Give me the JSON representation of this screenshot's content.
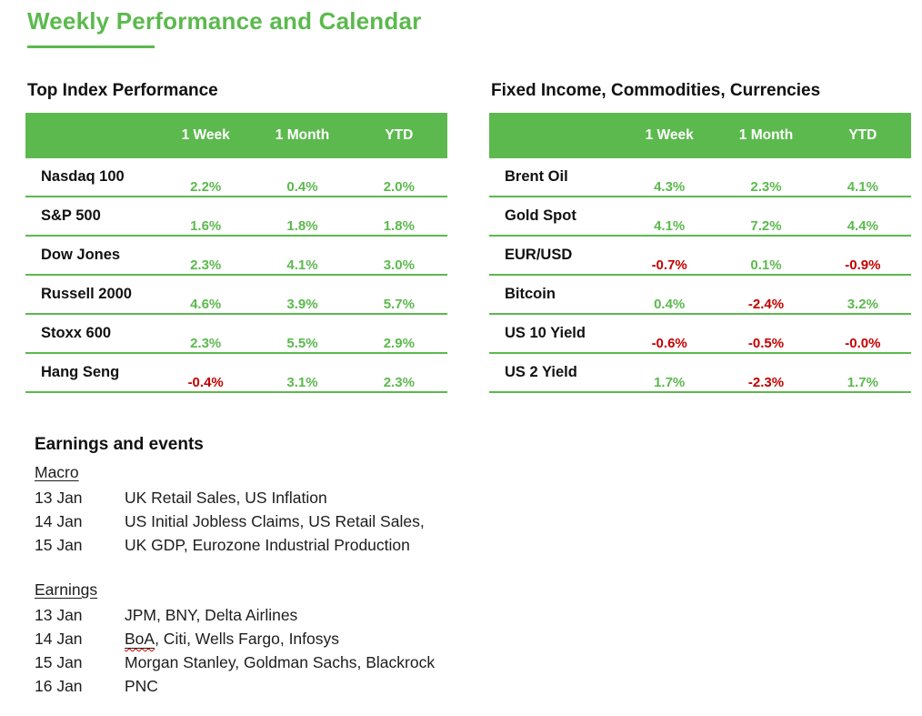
{
  "page": {
    "title": "Weekly Performance and Calendar"
  },
  "colors": {
    "green": "#5CB94E",
    "red": "#C40000"
  },
  "tables": [
    {
      "heading": "Top Index Performance",
      "columns": [
        "1 Week",
        "1 Month",
        "YTD"
      ],
      "rows": [
        {
          "name": "Nasdaq 100",
          "values": [
            {
              "text": "2.2%",
              "tone": "pos"
            },
            {
              "text": "0.4%",
              "tone": "pos"
            },
            {
              "text": "2.0%",
              "tone": "pos"
            }
          ]
        },
        {
          "name": "S&P 500",
          "values": [
            {
              "text": "1.6%",
              "tone": "pos"
            },
            {
              "text": "1.8%",
              "tone": "pos"
            },
            {
              "text": "1.8%",
              "tone": "pos"
            }
          ]
        },
        {
          "name": "Dow Jones",
          "values": [
            {
              "text": "2.3%",
              "tone": "pos"
            },
            {
              "text": "4.1%",
              "tone": "pos"
            },
            {
              "text": "3.0%",
              "tone": "pos"
            }
          ]
        },
        {
          "name": "Russell 2000",
          "values": [
            {
              "text": "4.6%",
              "tone": "pos"
            },
            {
              "text": "3.9%",
              "tone": "pos"
            },
            {
              "text": "5.7%",
              "tone": "pos"
            }
          ]
        },
        {
          "name": "Stoxx 600",
          "values": [
            {
              "text": "2.3%",
              "tone": "pos"
            },
            {
              "text": "5.5%",
              "tone": "pos"
            },
            {
              "text": "2.9%",
              "tone": "pos"
            }
          ]
        },
        {
          "name": "Hang Seng",
          "values": [
            {
              "text": "-0.4%",
              "tone": "neg"
            },
            {
              "text": "3.1%",
              "tone": "pos"
            },
            {
              "text": "2.3%",
              "tone": "pos"
            }
          ]
        }
      ]
    },
    {
      "heading": "Fixed Income, Commodities, Currencies",
      "columns": [
        "1 Week",
        "1 Month",
        "YTD"
      ],
      "rows": [
        {
          "name": "Brent Oil",
          "values": [
            {
              "text": "4.3%",
              "tone": "pos"
            },
            {
              "text": "2.3%",
              "tone": "pos"
            },
            {
              "text": "4.1%",
              "tone": "pos"
            }
          ]
        },
        {
          "name": "Gold Spot",
          "values": [
            {
              "text": "4.1%",
              "tone": "pos"
            },
            {
              "text": "7.2%",
              "tone": "pos"
            },
            {
              "text": "4.4%",
              "tone": "pos"
            }
          ]
        },
        {
          "name": "EUR/USD",
          "values": [
            {
              "text": "-0.7%",
              "tone": "neg"
            },
            {
              "text": "0.1%",
              "tone": "pos"
            },
            {
              "text": "-0.9%",
              "tone": "neg"
            }
          ]
        },
        {
          "name": "Bitcoin",
          "values": [
            {
              "text": "0.4%",
              "tone": "pos"
            },
            {
              "text": "-2.4%",
              "tone": "neg"
            },
            {
              "text": "3.2%",
              "tone": "pos"
            }
          ]
        },
        {
          "name": "US 10 Yield",
          "values": [
            {
              "text": "-0.6%",
              "tone": "neg"
            },
            {
              "text": "-0.5%",
              "tone": "neg"
            },
            {
              "text": "-0.0%",
              "tone": "neg"
            }
          ]
        },
        {
          "name": "US 2 Yield",
          "values": [
            {
              "text": "1.7%",
              "tone": "pos"
            },
            {
              "text": "-2.3%",
              "tone": "neg"
            },
            {
              "text": "1.7%",
              "tone": "pos"
            }
          ]
        }
      ]
    }
  ],
  "events": {
    "heading": "Earnings and events",
    "sections": [
      {
        "title": "Macro",
        "items": [
          {
            "date": "13 Jan",
            "text": "UK Retail Sales, US Inflation"
          },
          {
            "date": "14 Jan",
            "text": "US Initial Jobless Claims, US Retail Sales,"
          },
          {
            "date": "15 Jan",
            "text": "UK GDP, Eurozone Industrial Production"
          }
        ]
      },
      {
        "title": "Earnings",
        "items": [
          {
            "date": "13 Jan",
            "text": "JPM, BNY, Delta Airlines"
          },
          {
            "date": "14 Jan",
            "marked": "BoA",
            "text": ", Citi, Wells Fargo, Infosys"
          },
          {
            "date": "15 Jan",
            "text": "Morgan Stanley, Goldman Sachs, Blackrock"
          },
          {
            "date": "16 Jan",
            "text": "PNC"
          }
        ]
      }
    ]
  }
}
